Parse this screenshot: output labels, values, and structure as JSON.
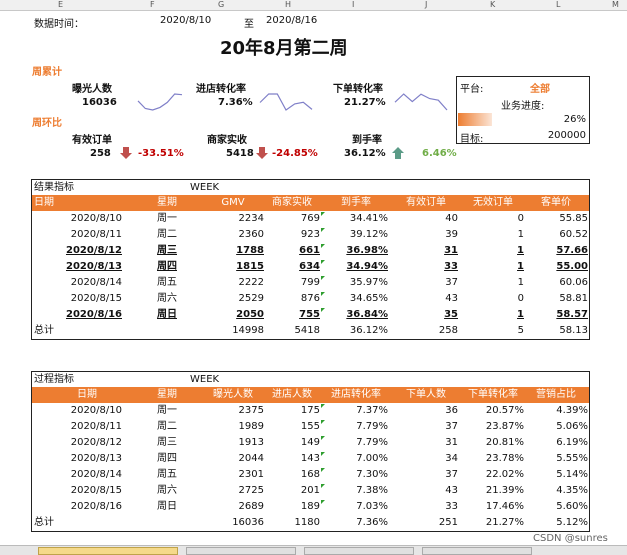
{
  "columns": [
    "E",
    "F",
    "G",
    "H",
    "I",
    "J",
    "K",
    "L",
    "M"
  ],
  "header": {
    "date_label": "数据时间：",
    "date_from": "2020/8/10",
    "to": "至",
    "date_to": "2020/8/16",
    "title": "20年8月第二周"
  },
  "summary": {
    "cumulative_label": "周累计",
    "wow_label": "周环比",
    "exposure": {
      "label": "曝光人数",
      "value": "16036",
      "spark": [
        2375,
        1989,
        1913,
        2044,
        2301,
        2725,
        2689
      ]
    },
    "store_conv": {
      "label": "进店转化率",
      "value": "7.36%",
      "spark": [
        7.37,
        7.79,
        7.79,
        7.0,
        7.3,
        7.38,
        7.03
      ]
    },
    "order_conv": {
      "label": "下单转化率",
      "value": "21.27%",
      "spark": [
        20.57,
        23.87,
        20.81,
        23.78,
        22.02,
        21.39,
        17.46
      ]
    },
    "valid_orders": {
      "label": "有效订单",
      "value": "258",
      "change": "-33.51%"
    },
    "merchant_revenue": {
      "label": "商家实收",
      "value": "5418",
      "change": "-24.85%"
    },
    "arrival_rate": {
      "label": "到手率",
      "value": "36.12%",
      "change": "6.46%"
    }
  },
  "platform": {
    "platform_label": "平台:",
    "platform_value": "全部",
    "progress_label": "业务进度:",
    "progress_value": "26%",
    "progress_fraction": 0.26,
    "target_label": "目标:",
    "target_value": "200000"
  },
  "result_table": {
    "section_title": "结果指标",
    "week_label": "WEEK",
    "headers": [
      "日期",
      "星期",
      "GMV",
      "商家实收",
      "到手率",
      "有效订单",
      "无效订单",
      "客单价"
    ],
    "rows": [
      [
        "2020/8/10",
        "周一",
        "2234",
        "769",
        "34.41%",
        "40",
        "0",
        "55.85"
      ],
      [
        "2020/8/11",
        "周二",
        "2360",
        "923",
        "39.12%",
        "39",
        "1",
        "60.52"
      ],
      [
        "2020/8/12",
        "周三",
        "1788",
        "661",
        "36.98%",
        "31",
        "1",
        "57.66"
      ],
      [
        "2020/8/13",
        "周四",
        "1815",
        "634",
        "34.94%",
        "33",
        "1",
        "55.00"
      ],
      [
        "2020/8/14",
        "周五",
        "2222",
        "799",
        "35.97%",
        "37",
        "1",
        "60.06"
      ],
      [
        "2020/8/15",
        "周六",
        "2529",
        "876",
        "34.65%",
        "43",
        "0",
        "58.81"
      ],
      [
        "2020/8/16",
        "周日",
        "2050",
        "755",
        "36.84%",
        "35",
        "1",
        "58.57"
      ]
    ],
    "highlight": [
      false,
      false,
      true,
      true,
      false,
      false,
      true
    ],
    "total": [
      "总计",
      "",
      "14998",
      "5418",
      "36.12%",
      "258",
      "5",
      "58.13"
    ]
  },
  "process_table": {
    "section_title": "过程指标",
    "week_label": "WEEK",
    "headers": [
      "日期",
      "星期",
      "曝光人数",
      "进店人数",
      "进店转化率",
      "下单人数",
      "下单转化率",
      "营销占比"
    ],
    "rows": [
      [
        "2020/8/10",
        "周一",
        "2375",
        "175",
        "7.37%",
        "36",
        "20.57%",
        "4.39%"
      ],
      [
        "2020/8/11",
        "周二",
        "1989",
        "155",
        "7.79%",
        "37",
        "23.87%",
        "5.06%"
      ],
      [
        "2020/8/12",
        "周三",
        "1913",
        "149",
        "7.79%",
        "31",
        "20.81%",
        "6.19%"
      ],
      [
        "2020/8/13",
        "周四",
        "2044",
        "143",
        "7.00%",
        "34",
        "23.78%",
        "5.55%"
      ],
      [
        "2020/8/14",
        "周五",
        "2301",
        "168",
        "7.30%",
        "37",
        "22.02%",
        "5.14%"
      ],
      [
        "2020/8/15",
        "周六",
        "2725",
        "201",
        "7.38%",
        "43",
        "21.39%",
        "4.35%"
      ],
      [
        "2020/8/16",
        "周日",
        "2689",
        "189",
        "7.03%",
        "33",
        "17.46%",
        "5.60%"
      ]
    ],
    "total": [
      "总计",
      "",
      "16036",
      "1180",
      "7.36%",
      "251",
      "21.27%",
      "5.12%"
    ]
  },
  "watermark": "CSDN @sunres",
  "colors": {
    "accent": "#ed7d31",
    "down": "#c00000",
    "up": "#70ad47",
    "spark": "#7f7fc8"
  }
}
